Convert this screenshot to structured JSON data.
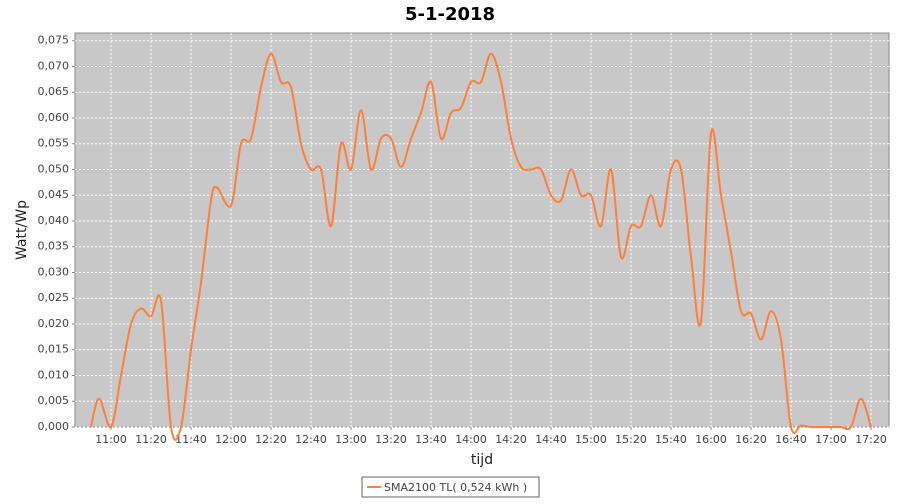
{
  "chart_data": {
    "type": "line",
    "title": "5-1-2018",
    "x_label": "tijd",
    "y_label": "Watt/Wp",
    "x": [
      "10:50",
      "10:54",
      "11:00",
      "11:05",
      "11:10",
      "11:15",
      "11:20",
      "11:25",
      "11:30",
      "11:35",
      "11:40",
      "11:45",
      "11:50",
      "11:53",
      "12:00",
      "12:05",
      "12:10",
      "12:15",
      "12:20",
      "12:25",
      "12:30",
      "12:35",
      "12:40",
      "12:45",
      "12:50",
      "12:55",
      "13:00",
      "13:05",
      "13:10",
      "13:15",
      "13:20",
      "13:25",
      "13:30",
      "13:35",
      "13:40",
      "13:45",
      "13:50",
      "13:55",
      "14:00",
      "14:05",
      "14:10",
      "14:15",
      "14:20",
      "14:25",
      "14:30",
      "14:35",
      "14:40",
      "14:45",
      "14:50",
      "14:55",
      "15:00",
      "15:05",
      "15:10",
      "15:15",
      "15:20",
      "15:25",
      "15:30",
      "15:35",
      "15:40",
      "15:45",
      "15:50",
      "15:55",
      "16:00",
      "16:05",
      "16:10",
      "16:15",
      "16:20",
      "16:25",
      "16:30",
      "16:35",
      "16:40",
      "16:45",
      "16:50",
      "17:00",
      "17:05",
      "17:10",
      "17:15",
      "17:20"
    ],
    "series": [
      {
        "name": "SMA2100 TL( 0,524 kWh )",
        "color": "#ff7f3a",
        "values": [
          0.0,
          0.0055,
          0.0,
          0.01,
          0.02,
          0.023,
          0.0215,
          0.0245,
          0.0,
          0.0,
          0.015,
          0.028,
          0.044,
          0.0465,
          0.043,
          0.055,
          0.056,
          0.066,
          0.0725,
          0.067,
          0.066,
          0.055,
          0.05,
          0.05,
          0.039,
          0.055,
          0.05,
          0.0615,
          0.05,
          0.056,
          0.056,
          0.0505,
          0.056,
          0.061,
          0.067,
          0.056,
          0.061,
          0.062,
          0.067,
          0.067,
          0.0725,
          0.067,
          0.056,
          0.0505,
          0.05,
          0.05,
          0.045,
          0.044,
          0.05,
          0.045,
          0.045,
          0.039,
          0.05,
          0.033,
          0.039,
          0.039,
          0.045,
          0.039,
          0.05,
          0.05,
          0.033,
          0.0205,
          0.057,
          0.045,
          0.034,
          0.0225,
          0.022,
          0.017,
          0.0225,
          0.017,
          0.0,
          0.0003,
          0.0,
          0.0,
          0.0,
          0.0,
          0.0055,
          0.0
        ]
      }
    ],
    "xlim": [
      "10:42",
      "17:29"
    ],
    "xticks": [
      "11:00",
      "11:20",
      "11:40",
      "12:00",
      "12:20",
      "12:40",
      "13:00",
      "13:20",
      "13:40",
      "14:00",
      "14:20",
      "14:40",
      "15:00",
      "15:20",
      "15:40",
      "16:00",
      "16:20",
      "16:40",
      "17:00",
      "17:20"
    ],
    "ylim": [
      0,
      0.0765
    ],
    "yticks": [
      {
        "value": 0,
        "label": "0,000"
      },
      {
        "value": 0.005,
        "label": "0,005"
      },
      {
        "value": 0.01,
        "label": "0,010"
      },
      {
        "value": 0.015,
        "label": "0,015"
      },
      {
        "value": 0.02,
        "label": "0,020"
      },
      {
        "value": 0.025,
        "label": "0,025"
      },
      {
        "value": 0.03,
        "label": "0,030"
      },
      {
        "value": 0.035,
        "label": "0,035"
      },
      {
        "value": 0.04,
        "label": "0,040"
      },
      {
        "value": 0.045,
        "label": "0,045"
      },
      {
        "value": 0.05,
        "label": "0,050"
      },
      {
        "value": 0.055,
        "label": "0,055"
      },
      {
        "value": 0.06,
        "label": "0,060"
      },
      {
        "value": 0.065,
        "label": "0,065"
      },
      {
        "value": 0.07,
        "label": "0,070"
      },
      {
        "value": 0.075,
        "label": "0,075"
      }
    ],
    "grid": true
  }
}
